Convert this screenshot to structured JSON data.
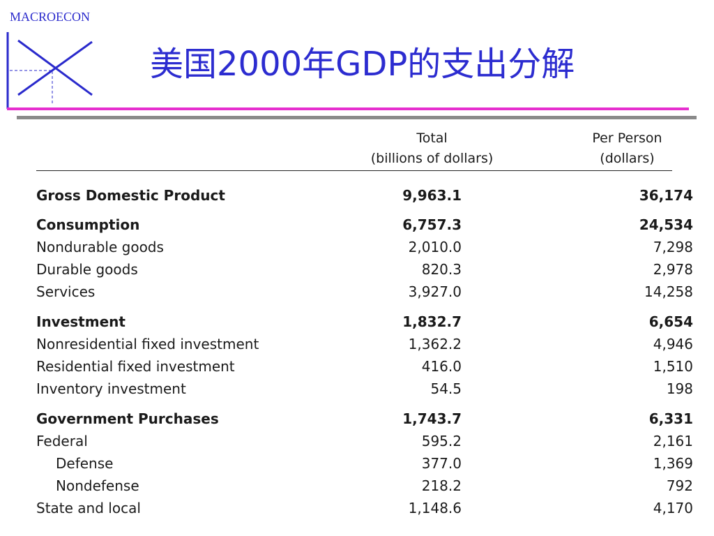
{
  "header": {
    "brand": "MACROECON",
    "title": "美国2000年GDP的支出分解"
  },
  "colors": {
    "brand_blue": "#2a2acc",
    "title_blue": "#2c2cd0",
    "accent_pink": "#e62fcf",
    "rule_gray": "#8a8a8a"
  },
  "table": {
    "columns": {
      "total": [
        "Total",
        "(billions of dollars)"
      ],
      "per_person": [
        "Per Person",
        "(dollars)"
      ]
    },
    "rows": [
      {
        "label": "Gross Domestic Product",
        "total": "9,963.1",
        "per_person": "36,174",
        "bold": true,
        "indent": false
      },
      {
        "label": "Consumption",
        "total": "6,757.3",
        "per_person": "24,534",
        "bold": true,
        "indent": false
      },
      {
        "label": "Nondurable goods",
        "total": "2,010.0",
        "per_person": "7,298",
        "bold": false,
        "indent": false
      },
      {
        "label": "Durable goods",
        "total": "820.3",
        "per_person": "2,978",
        "bold": false,
        "indent": false
      },
      {
        "label": "Services",
        "total": "3,927.0",
        "per_person": "14,258",
        "bold": false,
        "indent": false
      },
      {
        "label": "Investment",
        "total": "1,832.7",
        "per_person": "6,654",
        "bold": true,
        "indent": false
      },
      {
        "label": "Nonresidential fixed investment",
        "total": "1,362.2",
        "per_person": "4,946",
        "bold": false,
        "indent": false
      },
      {
        "label": "Residential fixed investment",
        "total": "416.0",
        "per_person": "1,510",
        "bold": false,
        "indent": false
      },
      {
        "label": "Inventory investment",
        "total": "54.5",
        "per_person": "198",
        "bold": false,
        "indent": false
      },
      {
        "label": "Government Purchases",
        "total": "1,743.7",
        "per_person": "6,331",
        "bold": true,
        "indent": false
      },
      {
        "label": "Federal",
        "total": "595.2",
        "per_person": "2,161",
        "bold": false,
        "indent": false
      },
      {
        "label": "Defense",
        "total": "377.0",
        "per_person": "1,369",
        "bold": false,
        "indent": true
      },
      {
        "label": "Nondefense",
        "total": "218.2",
        "per_person": "792",
        "bold": false,
        "indent": true
      },
      {
        "label": "State and local",
        "total": "1,148.6",
        "per_person": "4,170",
        "bold": false,
        "indent": false
      }
    ]
  }
}
